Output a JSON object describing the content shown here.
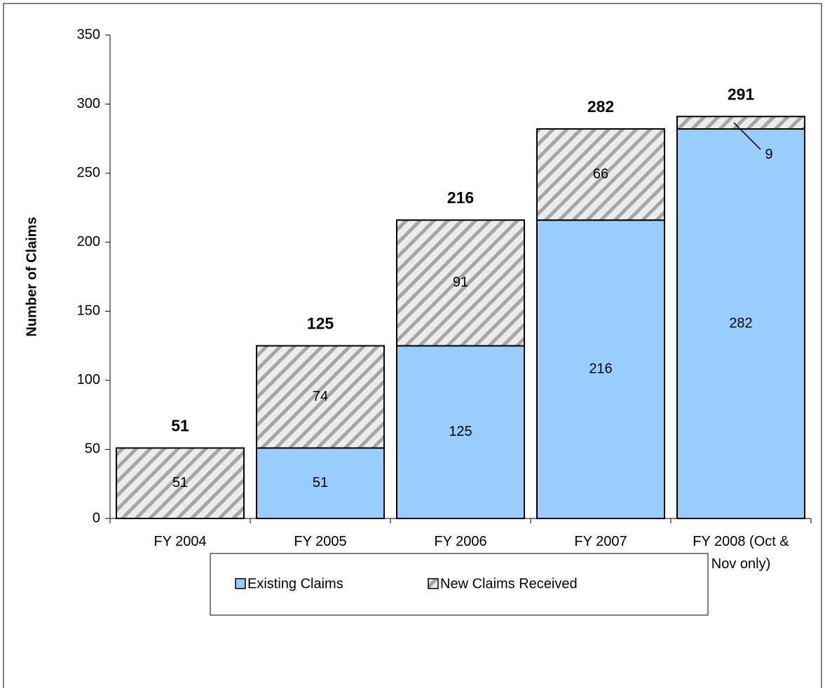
{
  "chart_data": {
    "type": "stacked_bar",
    "y_axis_label": "Number of Claims",
    "categories": [
      "FY 2004",
      "FY 2005",
      "FY 2006",
      "FY 2007",
      "FY 2008 (Oct & Nov only)"
    ],
    "series": [
      {
        "name": "Existing Claims",
        "color": "#99ccff",
        "values": [
          null,
          51,
          125,
          216,
          282
        ]
      },
      {
        "name": "New Claims Received",
        "color": "#d9d9d9",
        "pattern": "hatch",
        "values": [
          51,
          74,
          91,
          66,
          9
        ]
      }
    ],
    "totals": [
      51,
      125,
      216,
      282,
      291
    ],
    "ylim": [
      0,
      350
    ],
    "yticks": [
      0,
      50,
      100,
      150,
      200,
      250,
      300,
      350
    ],
    "legend": "bottom"
  }
}
